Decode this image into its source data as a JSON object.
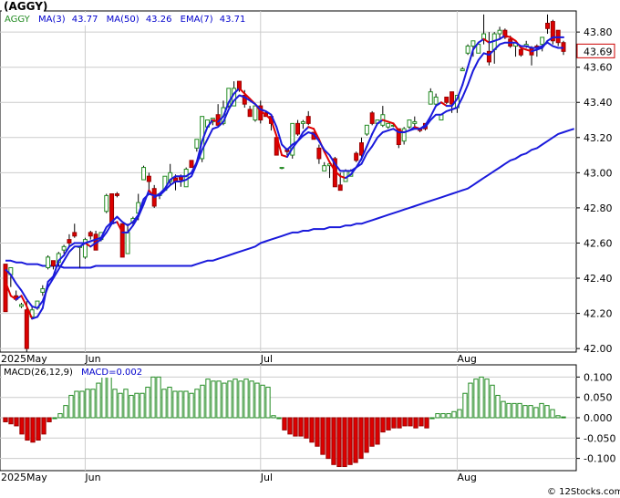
{
  "chart_data": [
    {
      "type": "candlestick",
      "title": "(AGGY)",
      "legend": [
        {
          "label": "AGGY",
          "value": "",
          "color": "#228b22"
        },
        {
          "label": "MA(3)",
          "value": "43.77",
          "color": "#0000cc"
        },
        {
          "label": "MA(50)",
          "value": "43.26",
          "color": "#0000cc"
        },
        {
          "label": "EMA(7)",
          "value": "43.71",
          "color": "#0000cc"
        }
      ],
      "last_price": "43.69",
      "ylim": [
        41.98,
        43.92
      ],
      "yticks": [
        "43.80",
        "43.60",
        "43.40",
        "43.20",
        "43.00",
        "42.80",
        "42.60",
        "42.40",
        "42.20",
        "42.00"
      ],
      "ytick_values": [
        43.8,
        43.6,
        43.4,
        43.2,
        43.0,
        42.8,
        42.6,
        42.4,
        42.2,
        42.0
      ],
      "x_labels": [
        {
          "label": "2025May",
          "index": 0
        },
        {
          "label": "Jun",
          "index": 15
        },
        {
          "label": "Jul",
          "index": 48
        },
        {
          "label": "Aug",
          "index": 85
        }
      ],
      "grid": true,
      "candles": [
        [
          42.48,
          42.21,
          42.48,
          42.21
        ],
        [
          42.42,
          42.46,
          42.35,
          42.44
        ],
        [
          42.3,
          42.28,
          42.33,
          42.27
        ],
        [
          42.24,
          42.25,
          42.26,
          42.23
        ],
        [
          42.22,
          42.0,
          42.27,
          41.98
        ],
        [
          42.18,
          42.22,
          42.24,
          42.17
        ],
        [
          42.23,
          42.27,
          42.27,
          42.22
        ],
        [
          42.32,
          42.34,
          42.36,
          42.3
        ],
        [
          42.46,
          42.52,
          42.53,
          42.45
        ],
        [
          42.5,
          42.47,
          42.5,
          42.45
        ],
        [
          42.49,
          42.54,
          42.55,
          42.47
        ],
        [
          42.56,
          42.58,
          42.59,
          42.54
        ],
        [
          42.62,
          42.6,
          42.65,
          42.58
        ],
        [
          42.66,
          42.64,
          42.71,
          42.63
        ],
        [
          42.58,
          42.58,
          42.58,
          42.46
        ],
        [
          42.52,
          42.62,
          42.63,
          42.51
        ],
        [
          42.66,
          42.64,
          42.67,
          42.62
        ],
        [
          42.65,
          42.56,
          42.67,
          42.56
        ],
        [
          42.62,
          42.66,
          42.66,
          42.61
        ],
        [
          42.78,
          42.87,
          42.88,
          42.77
        ],
        [
          42.88,
          42.71,
          42.88,
          42.71
        ],
        [
          42.88,
          42.87,
          42.89,
          42.86
        ],
        [
          42.71,
          42.52,
          42.71,
          42.52
        ],
        [
          42.54,
          42.66,
          42.71,
          42.54
        ],
        [
          42.72,
          42.74,
          42.75,
          42.7
        ],
        [
          42.77,
          42.83,
          42.88,
          42.73
        ],
        [
          42.96,
          43.03,
          43.04,
          42.96
        ],
        [
          42.98,
          42.95,
          43.0,
          42.9
        ],
        [
          42.91,
          42.81,
          42.93,
          42.8
        ],
        [
          42.87,
          42.88,
          42.88,
          42.85
        ],
        [
          42.9,
          42.98,
          42.98,
          42.9
        ],
        [
          42.95,
          43.0,
          43.05,
          42.93
        ],
        [
          42.97,
          42.95,
          42.99,
          42.9
        ],
        [
          42.98,
          42.96,
          42.99,
          42.92
        ],
        [
          42.92,
          43.02,
          43.03,
          42.92
        ],
        [
          43.07,
          43.03,
          43.07,
          43.03
        ],
        [
          43.14,
          43.19,
          43.19,
          43.12
        ],
        [
          43.08,
          43.32,
          43.32,
          43.06
        ],
        [
          43.26,
          43.3,
          43.3,
          43.25
        ],
        [
          43.29,
          43.31,
          43.31,
          43.27
        ],
        [
          43.33,
          43.27,
          43.39,
          43.26
        ],
        [
          43.28,
          43.37,
          43.41,
          43.27
        ],
        [
          43.38,
          43.48,
          43.48,
          43.37
        ],
        [
          43.38,
          43.48,
          43.52,
          43.38
        ],
        [
          43.52,
          43.47,
          43.52,
          43.46
        ],
        [
          43.44,
          43.39,
          43.47,
          43.37
        ],
        [
          43.36,
          43.32,
          43.38,
          43.32
        ],
        [
          43.3,
          43.38,
          43.38,
          43.29
        ],
        [
          43.38,
          43.3,
          43.41,
          43.28
        ],
        [
          43.34,
          43.32,
          43.35,
          43.32
        ],
        [
          43.32,
          43.28,
          43.32,
          43.24
        ],
        [
          43.2,
          43.1,
          43.2,
          43.1
        ],
        [
          43.03,
          43.03,
          43.03,
          43.02
        ],
        [
          43.13,
          43.12,
          43.14,
          43.1
        ],
        [
          43.1,
          43.28,
          43.28,
          43.08
        ],
        [
          43.28,
          43.22,
          43.3,
          43.21
        ],
        [
          43.28,
          43.29,
          43.3,
          43.25
        ],
        [
          43.32,
          43.28,
          43.35,
          43.27
        ],
        [
          43.23,
          43.19,
          43.23,
          43.19
        ],
        [
          43.14,
          43.08,
          43.16,
          43.05
        ],
        [
          43.01,
          43.04,
          43.06,
          43.01
        ],
        [
          43.04,
          43.05,
          43.06,
          42.97
        ],
        [
          43.08,
          42.92,
          43.09,
          42.92
        ],
        [
          42.93,
          42.9,
          43.0,
          42.9
        ],
        [
          42.95,
          43.01,
          43.02,
          42.95
        ],
        [
          42.98,
          43.01,
          43.02,
          42.98
        ],
        [
          43.11,
          43.07,
          43.12,
          43.06
        ],
        [
          43.17,
          43.1,
          43.2,
          43.07
        ],
        [
          43.22,
          43.27,
          43.27,
          43.21
        ],
        [
          43.34,
          43.28,
          43.35,
          43.27
        ],
        [
          43.28,
          43.3,
          43.3,
          43.28
        ],
        [
          43.27,
          43.33,
          43.38,
          43.26
        ],
        [
          43.26,
          43.28,
          43.28,
          43.25
        ],
        [
          43.27,
          43.27,
          43.28,
          43.26
        ],
        [
          43.25,
          43.16,
          43.25,
          43.14
        ],
        [
          43.18,
          43.25,
          43.26,
          43.16
        ],
        [
          43.26,
          43.3,
          43.3,
          43.25
        ],
        [
          43.28,
          43.29,
          43.32,
          43.26
        ],
        [
          43.25,
          43.24,
          43.25,
          43.23
        ],
        [
          43.28,
          43.25,
          43.28,
          43.24
        ],
        [
          43.39,
          43.46,
          43.48,
          43.39
        ],
        [
          43.39,
          43.43,
          43.45,
          43.38
        ],
        [
          43.3,
          43.33,
          43.33,
          43.3
        ],
        [
          43.43,
          43.4,
          43.43,
          43.39
        ],
        [
          43.46,
          43.39,
          43.46,
          43.34
        ],
        [
          43.37,
          43.44,
          43.44,
          43.34
        ],
        [
          43.58,
          43.59,
          43.6,
          43.58
        ],
        [
          43.68,
          43.72,
          43.73,
          43.67
        ],
        [
          43.72,
          43.75,
          43.75,
          43.66
        ],
        [
          43.68,
          43.73,
          43.74,
          43.68
        ],
        [
          43.76,
          43.79,
          43.9,
          43.73
        ],
        [
          43.69,
          43.63,
          43.8,
          43.61
        ],
        [
          43.7,
          43.79,
          43.8,
          43.62
        ],
        [
          43.79,
          43.81,
          43.83,
          43.76
        ],
        [
          43.81,
          43.77,
          43.82,
          43.76
        ],
        [
          43.76,
          43.72,
          43.78,
          43.71
        ],
        [
          43.72,
          43.74,
          43.74,
          43.66
        ],
        [
          43.7,
          43.67,
          43.71,
          43.66
        ],
        [
          43.72,
          43.73,
          43.75,
          43.71
        ],
        [
          43.71,
          43.67,
          43.72,
          43.61
        ],
        [
          43.72,
          43.71,
          43.73,
          43.66
        ],
        [
          43.73,
          43.77,
          43.77,
          43.69
        ],
        [
          43.85,
          43.82,
          43.9,
          43.79
        ],
        [
          43.86,
          43.75,
          43.87,
          43.73
        ],
        [
          43.81,
          43.74,
          43.81,
          43.72
        ],
        [
          43.74,
          43.69,
          43.75,
          43.67
        ]
      ],
      "ma3": [
        42.38,
        42.3,
        42.28,
        42.3,
        42.24,
        42.17,
        42.18,
        42.23,
        42.38,
        42.41,
        42.5,
        42.53,
        42.58,
        42.6,
        42.6,
        42.6,
        42.58,
        42.6,
        42.62,
        42.66,
        42.71,
        42.72,
        42.66,
        42.66,
        42.7,
        42.75,
        42.82,
        42.9,
        42.86,
        42.88,
        42.91,
        42.96,
        42.98,
        42.98,
        42.98,
        43.0,
        43.06,
        43.18,
        43.26,
        43.3,
        43.29,
        43.32,
        43.4,
        43.45,
        43.48,
        43.45,
        43.42,
        43.39,
        43.35,
        43.33,
        43.3,
        43.21,
        43.1,
        43.09,
        43.14,
        43.18,
        43.23,
        43.26,
        43.25,
        43.19,
        43.12,
        43.06,
        43.01,
        42.98,
        42.97,
        42.99,
        43.03,
        43.08,
        43.15,
        43.22,
        43.28,
        43.3,
        43.29,
        43.28,
        43.24,
        43.23,
        43.24,
        43.26,
        43.25,
        43.27,
        43.32,
        43.38,
        43.4,
        43.38,
        43.38,
        43.42,
        43.5,
        43.6,
        43.7,
        43.74,
        43.76,
        43.74,
        43.75,
        43.76,
        43.78,
        43.77,
        43.75,
        43.71,
        43.7,
        43.69,
        43.7,
        43.71,
        43.75,
        43.77,
        43.77,
        43.77
      ],
      "ema7": [
        42.45,
        42.42,
        42.37,
        42.33,
        42.28,
        42.24,
        42.23,
        42.27,
        42.35,
        42.4,
        42.45,
        42.5,
        42.55,
        42.58,
        42.58,
        42.6,
        42.61,
        42.62,
        42.63,
        42.69,
        42.72,
        42.75,
        42.72,
        42.7,
        42.72,
        42.76,
        42.85,
        42.88,
        42.87,
        42.87,
        42.9,
        42.93,
        42.95,
        42.95,
        42.96,
        42.98,
        43.05,
        43.13,
        43.19,
        43.25,
        43.26,
        43.29,
        43.36,
        43.41,
        43.44,
        43.43,
        43.41,
        43.39,
        43.36,
        43.35,
        43.33,
        43.26,
        43.16,
        43.13,
        43.16,
        43.18,
        43.21,
        43.23,
        43.22,
        43.18,
        43.13,
        43.1,
        43.05,
        43.01,
        43.01,
        43.01,
        43.03,
        43.05,
        43.11,
        43.15,
        43.2,
        43.23,
        43.24,
        43.25,
        43.23,
        43.23,
        43.24,
        43.25,
        43.25,
        43.26,
        43.3,
        43.33,
        43.33,
        43.35,
        43.36,
        43.37,
        43.43,
        43.5,
        43.58,
        43.64,
        43.68,
        43.67,
        43.7,
        43.73,
        43.74,
        43.74,
        43.74,
        43.72,
        43.72,
        43.71,
        43.71,
        43.72,
        43.74,
        43.72,
        43.71,
        43.71
      ],
      "ma50": [
        42.5,
        42.5,
        42.49,
        42.49,
        42.48,
        42.48,
        42.48,
        42.47,
        42.47,
        42.47,
        42.47,
        42.46,
        42.46,
        42.46,
        42.46,
        42.46,
        42.46,
        42.47,
        42.47,
        42.47,
        42.47,
        42.47,
        42.47,
        42.47,
        42.47,
        42.47,
        42.47,
        42.47,
        42.47,
        42.47,
        42.47,
        42.47,
        42.47,
        42.47,
        42.47,
        42.47,
        42.48,
        42.49,
        42.5,
        42.5,
        42.51,
        42.52,
        42.53,
        42.54,
        42.55,
        42.56,
        42.57,
        42.58,
        42.6,
        42.61,
        42.62,
        42.63,
        42.64,
        42.65,
        42.66,
        42.66,
        42.67,
        42.67,
        42.68,
        42.68,
        42.68,
        42.69,
        42.69,
        42.69,
        42.7,
        42.7,
        42.71,
        42.71,
        42.72,
        42.73,
        42.74,
        42.75,
        42.76,
        42.77,
        42.78,
        42.79,
        42.8,
        42.81,
        42.82,
        42.83,
        42.84,
        42.85,
        42.86,
        42.87,
        42.88,
        42.89,
        42.9,
        42.91,
        42.93,
        42.95,
        42.97,
        42.99,
        43.01,
        43.03,
        43.05,
        43.07,
        43.08,
        43.1,
        43.11,
        43.13,
        43.14,
        43.16,
        43.18,
        43.2,
        43.22,
        43.23,
        43.24,
        43.25
      ]
    },
    {
      "type": "bar",
      "title": "MACD(26,12,9)",
      "legend": [
        {
          "label": "MACD(26,12,9)",
          "value": "",
          "color": "#000000"
        },
        {
          "label": "MACD=",
          "value": "0.002",
          "color": "#0000cc"
        }
      ],
      "ylim": [
        -0.13,
        0.13
      ],
      "yticks": [
        "0.100",
        "0.050",
        "0.000",
        "-0.050",
        "-0.100"
      ],
      "ytick_values": [
        0.1,
        0.05,
        0.0,
        -0.05,
        -0.1
      ],
      "values": [
        -0.01,
        -0.015,
        -0.02,
        -0.04,
        -0.055,
        -0.06,
        -0.055,
        -0.04,
        -0.01,
        0.0,
        0.01,
        0.03,
        0.055,
        0.065,
        0.065,
        0.07,
        0.07,
        0.085,
        0.1,
        0.1,
        0.07,
        0.06,
        0.07,
        0.055,
        0.06,
        0.06,
        0.075,
        0.1,
        0.1,
        0.07,
        0.075,
        0.065,
        0.065,
        0.065,
        0.06,
        0.07,
        0.08,
        0.095,
        0.09,
        0.09,
        0.085,
        0.09,
        0.095,
        0.09,
        0.095,
        0.09,
        0.085,
        0.08,
        0.075,
        0.005,
        0.0,
        -0.03,
        -0.04,
        -0.045,
        -0.045,
        -0.05,
        -0.06,
        -0.07,
        -0.09,
        -0.1,
        -0.115,
        -0.12,
        -0.12,
        -0.115,
        -0.11,
        -0.1,
        -0.085,
        -0.07,
        -0.065,
        -0.035,
        -0.03,
        -0.025,
        -0.025,
        -0.02,
        -0.02,
        -0.025,
        -0.02,
        -0.025,
        0.0,
        0.01,
        0.01,
        0.01,
        0.015,
        0.02,
        0.06,
        0.085,
        0.095,
        0.1,
        0.095,
        0.08,
        0.055,
        0.04,
        0.035,
        0.035,
        0.035,
        0.03,
        0.03,
        0.025,
        0.035,
        0.03,
        0.02,
        0.005,
        0.002
      ]
    }
  ],
  "credit": "© 12Stocks.com"
}
